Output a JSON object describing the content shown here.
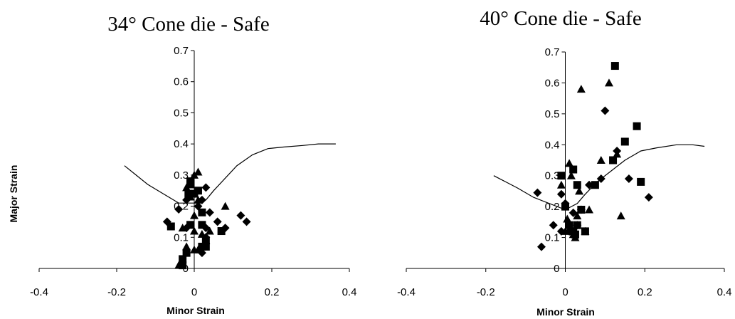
{
  "chart_data": [
    {
      "type": "scatter",
      "title": "34° Cone die - Safe",
      "xlabel": "Minor Strain",
      "ylabel": "Major Strain",
      "xlim": [
        -0.4,
        0.4
      ],
      "ylim": [
        0,
        0.7
      ],
      "xticks": [
        "-0.4",
        "-0.2",
        "0",
        "0.2",
        "0.4"
      ],
      "yticks": [
        "0",
        "0.1",
        "0.2",
        "0.3",
        "0.4",
        "0.5",
        "0.6",
        "0.7"
      ],
      "grid": false,
      "legend": "none",
      "curve": {
        "x": [
          -0.18,
          -0.15,
          -0.12,
          -0.08,
          -0.04,
          0.0,
          0.03,
          0.05,
          0.08,
          0.11,
          0.15,
          0.19,
          0.23,
          0.28,
          0.32,
          0.365
        ],
        "y": [
          0.33,
          0.3,
          0.27,
          0.24,
          0.21,
          0.21,
          0.22,
          0.25,
          0.29,
          0.33,
          0.365,
          0.385,
          0.39,
          0.395,
          0.4,
          0.4
        ]
      },
      "series": [
        {
          "marker": "diamond",
          "x": [
            -0.07,
            -0.04,
            -0.02,
            0.0,
            0.02,
            0.03,
            0.01,
            0.04,
            0.03,
            0.06,
            0.08,
            0.12,
            0.135,
            0.03,
            -0.02,
            0.02
          ],
          "y": [
            0.15,
            0.19,
            0.22,
            0.24,
            0.22,
            0.26,
            0.2,
            0.18,
            0.13,
            0.15,
            0.13,
            0.17,
            0.15,
            0.1,
            0.13,
            0.05
          ]
        },
        {
          "marker": "square",
          "x": [
            -0.06,
            -0.03,
            -0.03,
            -0.02,
            -0.015,
            -0.01,
            -0.01,
            0.01,
            0.02,
            0.02,
            0.03,
            0.03,
            0.07,
            0.02,
            -0.01,
            0.0
          ],
          "y": [
            0.135,
            0.03,
            0.01,
            0.05,
            0.24,
            0.27,
            0.28,
            0.25,
            0.18,
            0.14,
            0.07,
            0.09,
            0.12,
            0.07,
            0.14,
            0.24
          ]
        },
        {
          "marker": "triangle",
          "x": [
            -0.04,
            -0.02,
            -0.03,
            0.0,
            0.01,
            0.0,
            0.01,
            0.0,
            -0.01,
            0.04,
            0.03,
            0.08,
            0.01,
            0.0,
            -0.02,
            0.02
          ],
          "y": [
            0.01,
            0.07,
            0.13,
            0.3,
            0.31,
            0.17,
            0.22,
            0.06,
            0.23,
            0.12,
            0.09,
            0.2,
            0.06,
            0.12,
            0.26,
            0.11
          ]
        }
      ]
    },
    {
      "type": "scatter",
      "title": "40° Cone die - Safe",
      "xlabel": "Minor Strain",
      "ylabel": "",
      "xlim": [
        -0.4,
        0.4
      ],
      "ylim": [
        0,
        0.7
      ],
      "xticks": [
        "-0.4",
        "-0.2",
        "0",
        "0.2",
        "0.4"
      ],
      "yticks": [
        "0",
        "0.1",
        "0.2",
        "0.3",
        "0.4",
        "0.5",
        "0.6",
        "0.7"
      ],
      "grid": false,
      "legend": "none",
      "curve": {
        "x": [
          -0.18,
          -0.15,
          -0.12,
          -0.08,
          -0.04,
          0.0,
          0.03,
          0.05,
          0.08,
          0.11,
          0.15,
          0.19,
          0.23,
          0.28,
          0.32,
          0.35
        ],
        "y": [
          0.3,
          0.28,
          0.26,
          0.23,
          0.21,
          0.19,
          0.21,
          0.24,
          0.28,
          0.31,
          0.35,
          0.38,
          0.39,
          0.4,
          0.4,
          0.395
        ]
      },
      "series": [
        {
          "marker": "diamond",
          "x": [
            -0.07,
            -0.06,
            -0.03,
            -0.01,
            0.0,
            0.02,
            0.06,
            0.09,
            0.1,
            0.13,
            0.16,
            0.21,
            0.03,
            0.01,
            -0.01,
            0.04
          ],
          "y": [
            0.245,
            0.07,
            0.14,
            0.24,
            0.21,
            0.18,
            0.27,
            0.29,
            0.51,
            0.38,
            0.29,
            0.23,
            0.14,
            0.12,
            0.12,
            0.19
          ]
        },
        {
          "marker": "square",
          "x": [
            -0.01,
            0.0,
            0.01,
            0.02,
            0.02,
            0.025,
            0.03,
            0.04,
            0.05,
            0.075,
            0.12,
            0.125,
            0.15,
            0.18,
            0.19,
            0.03
          ],
          "y": [
            0.3,
            0.2,
            0.14,
            0.12,
            0.32,
            0.11,
            0.27,
            0.19,
            0.12,
            0.27,
            0.35,
            0.655,
            0.41,
            0.46,
            0.28,
            0.14
          ]
        },
        {
          "marker": "triangle",
          "x": [
            -0.01,
            0.0,
            0.01,
            0.02,
            0.03,
            0.04,
            0.05,
            0.06,
            0.09,
            0.11,
            0.13,
            0.14,
            0.015,
            0.005,
            0.035,
            0.025
          ],
          "y": [
            0.27,
            0.12,
            0.34,
            0.11,
            0.17,
            0.58,
            0.12,
            0.19,
            0.35,
            0.6,
            0.37,
            0.17,
            0.3,
            0.16,
            0.25,
            0.1
          ]
        }
      ]
    }
  ]
}
